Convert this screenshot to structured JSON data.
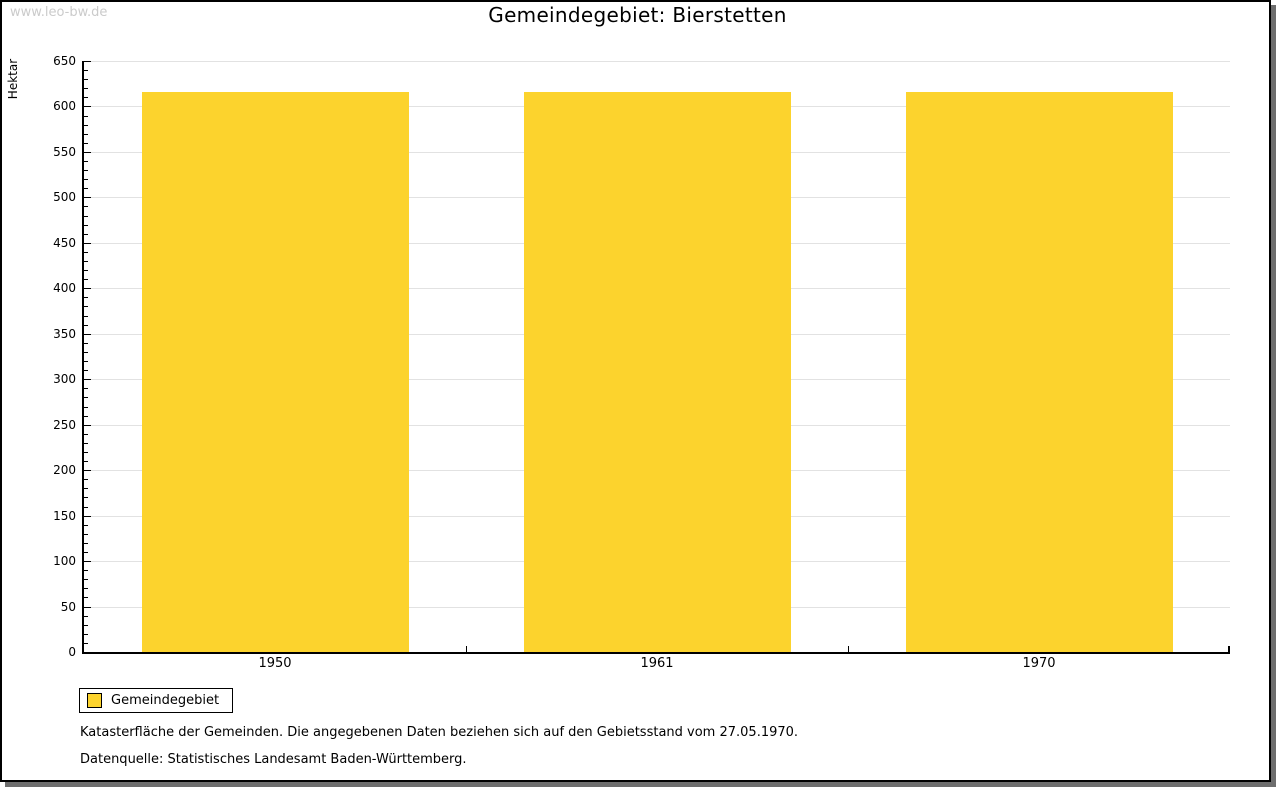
{
  "watermark": "www.leo-bw.de",
  "chart_data": {
    "type": "bar",
    "title": "Gemeindegebiet: Bierstetten",
    "categories": [
      "1950",
      "1961",
      "1970"
    ],
    "series": [
      {
        "name": "Gemeindegebiet",
        "values": [
          616,
          616,
          616
        ]
      }
    ],
    "xlabel": "",
    "ylabel": "Hektar",
    "ylim": [
      0,
      650
    ],
    "y_major_step": 50,
    "y_minor_step": 10,
    "grid": "horizontal-major-lines",
    "legend_position": "bottom-left",
    "bar_color": "#FCD32D",
    "grid_color": "#E2E2E2",
    "axis_color": "#000000"
  },
  "legend": {
    "items": [
      {
        "label": "Gemeindegebiet",
        "color": "#FCD32D"
      }
    ]
  },
  "footer": {
    "note": "Katasterfläche der Gemeinden. Die angegebenen Daten beziehen sich auf den Gebietsstand vom 27.05.1970.",
    "source": "Datenquelle: Statistisches Landesamt Baden-Württemberg."
  },
  "colors": {
    "bar": "#FCD32D",
    "grid": "#E2E2E2",
    "axis": "#000000",
    "watermark": "#CBCBCB",
    "frame_shadow": "#6D6D6D"
  }
}
